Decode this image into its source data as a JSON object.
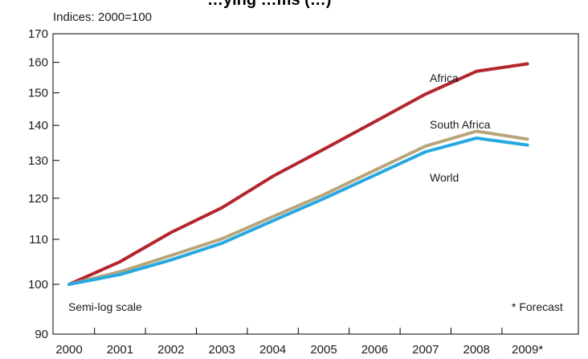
{
  "chart_data": {
    "type": "line",
    "title": "…ying …ms (…)",
    "ylabel": "Indices: 2000=100",
    "xlabel": "",
    "scale": "log",
    "ylim": [
      90,
      170
    ],
    "yticks": [
      90,
      100,
      110,
      120,
      130,
      140,
      150,
      160,
      170
    ],
    "categories": [
      "2000",
      "2001",
      "2002",
      "2003",
      "2004",
      "2005",
      "2006",
      "2007",
      "2008",
      "2009*"
    ],
    "series": [
      {
        "name": "Africa",
        "color": "#b3262c",
        "values": [
          100,
          104.9,
          111.6,
          117.6,
          125.7,
          133.1,
          141.1,
          149.6,
          157.0,
          159.5
        ]
      },
      {
        "name": "South Africa",
        "color": "#b8a57a",
        "values": [
          100,
          102.7,
          106.3,
          110.1,
          115.4,
          120.9,
          127.3,
          134.0,
          138.3,
          136.0
        ]
      },
      {
        "name": "World",
        "color": "#26a8e0",
        "values": [
          100,
          102.1,
          105.3,
          109.1,
          114.4,
          119.9,
          126.0,
          132.4,
          136.3,
          134.3
        ]
      }
    ],
    "notes": {
      "scale_note": "Semi-log scale",
      "forecast_note": "* Forecast"
    },
    "grid": false
  }
}
